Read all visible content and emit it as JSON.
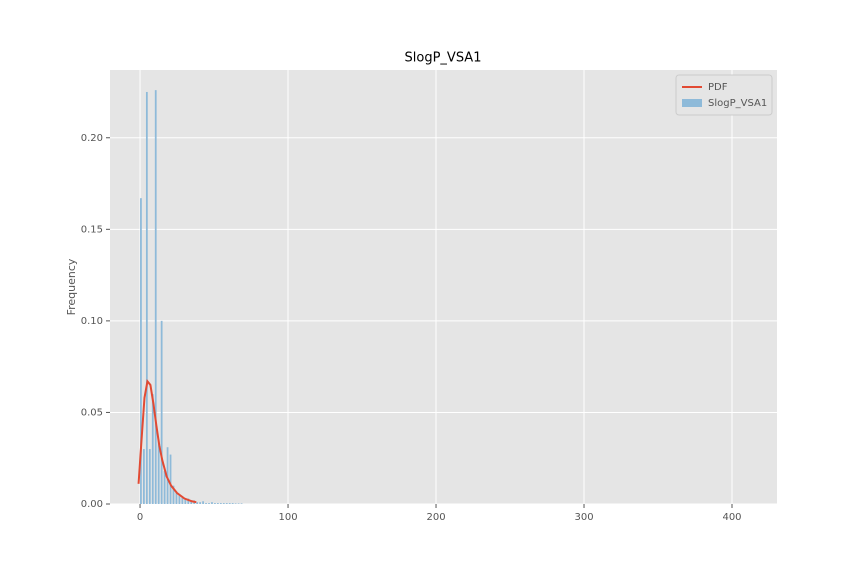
{
  "chart_data": {
    "type": "histogram",
    "title": "SlogP_VSA1",
    "ylabel": "Frequency",
    "xlim": [
      -20.3,
      430.4
    ],
    "ylim": [
      0,
      0.237
    ],
    "xticks": [
      0,
      100,
      200,
      300,
      400
    ],
    "yticks": [
      {
        "value": 0,
        "label": "0.00"
      },
      0.05,
      {
        "value": 0.1,
        "label": "0.10"
      },
      0.15,
      {
        "value": 0.2,
        "label": "0.20"
      }
    ],
    "grid": true,
    "legend": "upper right",
    "series": [
      {
        "name": "PDF",
        "type": "line",
        "color": "#E24A33",
        "x": [
          -1,
          1,
          3,
          5,
          7,
          9,
          11,
          13,
          15,
          18,
          21,
          25,
          30,
          35,
          38
        ],
        "values": [
          0.011,
          0.035,
          0.058,
          0.067,
          0.065,
          0.055,
          0.043,
          0.032,
          0.024,
          0.015,
          0.01,
          0.006,
          0.003,
          0.0015,
          0.001
        ]
      },
      {
        "name": "SlogP_VSA1",
        "type": "histogram",
        "color": "#8EBAD9",
        "bins": [
          0,
          2,
          4,
          6,
          8,
          10,
          12,
          14,
          16,
          18,
          20,
          22,
          24,
          26,
          28,
          30,
          32,
          34,
          36,
          38,
          40,
          42,
          44,
          46,
          48,
          50,
          52,
          54,
          56,
          58,
          60,
          62,
          64,
          66,
          68,
          70
        ],
        "values": [
          0.167,
          0.03,
          0.225,
          0.03,
          0.06,
          0.226,
          0.035,
          0.1,
          0.018,
          0.031,
          0.027,
          0.01,
          0.006,
          0.005,
          0.004,
          0.003,
          0.003,
          0.002,
          0.002,
          0.001,
          0.001,
          0.0015,
          0.0005,
          0.0005,
          0.001,
          0.0005,
          0.0005,
          0.0005,
          0.0005,
          0.0005,
          0.0005,
          0.0005,
          0.0003,
          0.0003,
          0.0003
        ]
      }
    ]
  }
}
